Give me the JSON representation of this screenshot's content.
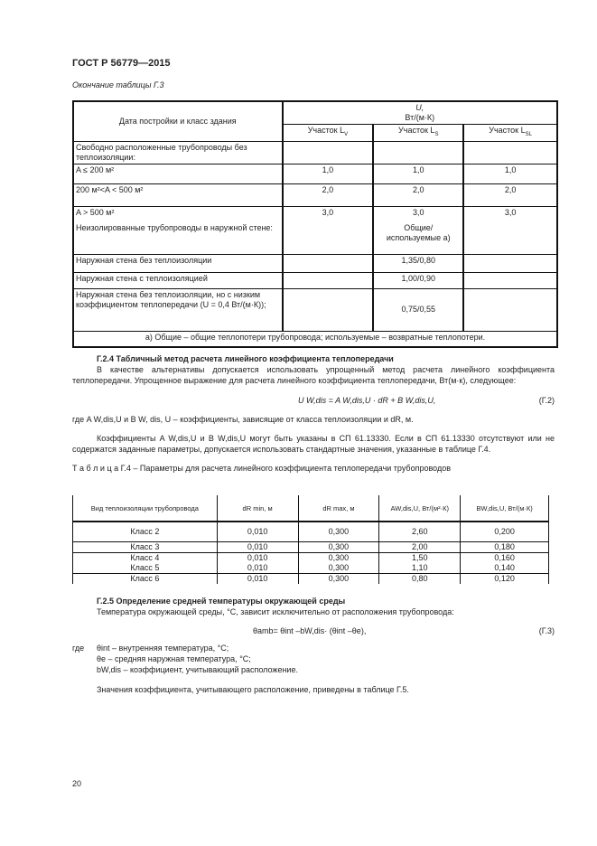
{
  "header": "ГОСТ Р 56779—2015",
  "table3": {
    "caption": "Окончание таблицы Г.3",
    "col1": "Дата постройки и класс здания",
    "u_symbol": "U,",
    "u_unit": "Вт/(м·К)",
    "sections": [
      "Участок L",
      "V",
      "Участок L",
      "S",
      "Участок L",
      "SL"
    ],
    "rows": [
      [
        "Свободно расположенные трубопроводы без теплоизоляции:",
        "",
        "",
        ""
      ],
      [
        "A ≤ 200 м²",
        "1,0",
        "1,0",
        "1,0"
      ],
      [
        "200 м²<A < 500 м²",
        "2,0",
        "2,0",
        "2,0"
      ],
      [
        "A > 500 м²",
        "3,0",
        "3,0",
        "3,0"
      ],
      [
        "Неизолированные трубопроводы в наружной стене:",
        "",
        "Общие/ используемые а)",
        ""
      ],
      [
        "Наружная стена без теплоизоляции",
        "",
        "1,35/0,80",
        ""
      ],
      [
        "Наружная стена с теплоизоляцией",
        "",
        "1,00/0,90",
        ""
      ],
      [
        "Наружная стена без теплоизоляции, но с низким коэффициентом теплопередачи (U = 0,4 Вт/(м·К));",
        "",
        "0,75/0,55",
        ""
      ]
    ],
    "footnote": "а) Общие – общие теплопотери трубопровода; используемые – возвратные теплопотери."
  },
  "s24": {
    "title": "Г.2.4  Табличный метод расчета линейного коэффициента теплопередачи",
    "p1": "В качестве альтернативы допускается использовать упрощенный метод расчета линейного коэффициента теплопередачи. Упрощенное выражение для расчета линейного коэффициента теплопередачи, Вт(м·к), следующее:",
    "formula": "U W,dis = A W,dis,U · dR + B W,dis,U,",
    "formula_no": "(Г.2)",
    "where": "где A W,dis,U и B W, dis, U – коэффициенты, зависящие от класса теплоизоляции и dR,  м.",
    "p2": "Коэффициенты A W,dis,U и B W,dis,U  могут быть указаны в СП 61.13330. Если в СП 61.13330 отсутствуют или не содержатся заданные параметры, допускается использовать стандартные значения, указанные в таблице Г.4."
  },
  "table4": {
    "caption": "Т а б л и ц а  Г.4 – Параметры для расчета линейного коэффициента теплопередачи трубопроводов",
    "headers": [
      "Вид теплоизоляции трубопровода",
      "dR min, м",
      "dR max, м",
      "AW,dis,U, Вт/(м²·К)",
      "BW,dis,U, Вт/(м·К)"
    ],
    "rows": [
      [
        "Класс 2",
        "0,010",
        "0,300",
        "2,60",
        "0,200"
      ],
      [
        "Класс 3",
        "0,010",
        "0,300",
        "2,00",
        "0,180"
      ],
      [
        "Класс 4",
        "0,010",
        "0,300",
        "1,50",
        "0,160"
      ],
      [
        "Класс 5",
        "0,010",
        "0,300",
        "1,10",
        "0,140"
      ],
      [
        "Класс 6",
        "0,010",
        "0,300",
        "0,80",
        "0,120"
      ]
    ]
  },
  "s25": {
    "title": "Г.2.5  Определение средней температуры окружающей среды",
    "p1": "Температура окружающей среды, °С, зависит исключительно от расположения трубопровода:",
    "formula": "θamb= θint –bW,dis· (θint –θe),",
    "formula_no": "(Г.3)",
    "where_label": "где",
    "where": [
      "θint – внутренняя температура, °С;",
      "θe – средняя наружная температура, °С;",
      "bW,dis – коэффициент, учитывающий расположение."
    ],
    "p2": "Значения коэффициента, учитывающего расположение, приведены в таблице Г.5."
  },
  "page_number": "20"
}
